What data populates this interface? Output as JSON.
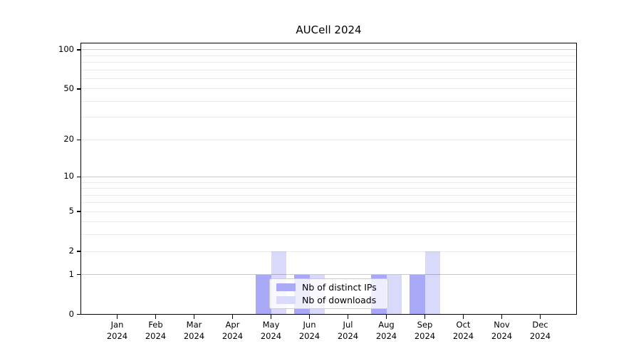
{
  "chart_data": {
    "type": "bar",
    "title": "AUCell 2024",
    "categories": [
      "Jan 2024",
      "Feb 2024",
      "Mar 2024",
      "Apr 2024",
      "May 2024",
      "Jun 2024",
      "Jul 2024",
      "Aug 2024",
      "Sep 2024",
      "Oct 2024",
      "Nov 2024",
      "Dec 2024"
    ],
    "series": [
      {
        "name": "Nb of distinct IPs",
        "values": [
          0,
          0,
          0,
          0,
          1,
          1,
          0,
          1,
          1,
          0,
          0,
          0
        ],
        "fill": "rgba(0,0,230,0.34)",
        "legend_color": "#aaaaf7"
      },
      {
        "name": "Nb of downloads",
        "values": [
          0,
          0,
          0,
          0,
          2,
          1,
          0,
          1,
          2,
          0,
          0,
          0
        ],
        "fill": "rgba(0,0,230,0.15)",
        "legend_color": "#dadafb"
      }
    ],
    "xlabel": "",
    "ylabel": "",
    "yscale": "log1p",
    "ylim": [
      0,
      113
    ],
    "ytick_values": [
      0,
      1,
      2,
      5,
      10,
      20,
      50,
      100
    ],
    "major_gridline_values": [
      1,
      10,
      100
    ],
    "minor_gridline_values": [
      2,
      3,
      4,
      5,
      6,
      7,
      8,
      9,
      20,
      30,
      40,
      50,
      60,
      70,
      80,
      90
    ],
    "grid": "horizontal",
    "legend_position": "inside-lower-center",
    "colors": {
      "background": "#ffffff",
      "axis": "#000000",
      "major_grid": "#c9c9c9",
      "minor_grid": "#ebebeb",
      "bar_distinct_ips": "#aaaaf7",
      "bar_downloads": "#dadafb"
    }
  }
}
